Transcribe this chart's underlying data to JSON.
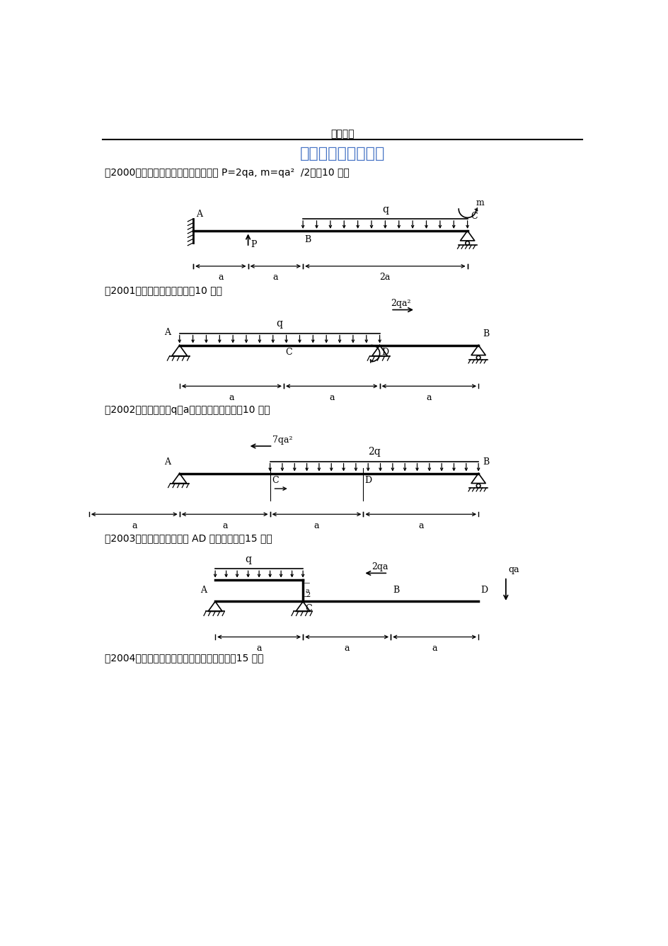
{
  "title_header": "实用文档",
  "title_main": "题型一：力图的绘制",
  "title_color": "#4472C4",
  "text_2000": "（2000）一、作图示结构的力图，其中 P=2qa, m=qa²  /2。（10 分）",
  "text_2001": "（2001）一、作梁的力图。（10 分）",
  "text_2002": "（2002）一、已知：q、a，试作梁的力图。（10 分）",
  "text_2003": "（2003）一、做图示结构中 AD 段的力图。（15 分）",
  "text_2004": "（2004）一、画图示梁的剪力图和弯矩图。（15 分）",
  "bg_color": "#ffffff",
  "line_color": "#000000"
}
